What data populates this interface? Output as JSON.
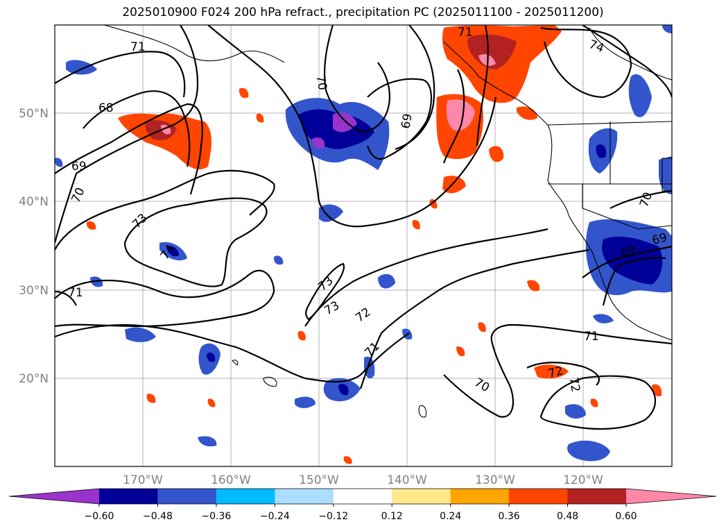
{
  "title": "2025010900 F024 200 hPa refract., precipitation PC (2025011100 - 2025011200)",
  "map": {
    "lon_range": [
      -180,
      -110
    ],
    "lat_range": [
      10,
      60
    ],
    "lon_ticks": [
      "170°W",
      "160°W",
      "150°W",
      "140°W",
      "130°W",
      "120°W"
    ],
    "lat_ticks": [
      "50°N",
      "40°N",
      "30°N",
      "20°N"
    ],
    "grid": true
  },
  "contours": {
    "labels": [
      "71",
      "68",
      "69",
      "70",
      "73",
      "74",
      "71",
      "70",
      "69",
      "71",
      "73",
      "73",
      "72",
      "71",
      "70",
      "72",
      "72",
      "71",
      "69",
      "70",
      "74",
      "71",
      "69"
    ]
  },
  "colorbar": {
    "tick_labels": [
      "-0.60",
      "-0.48",
      "-0.36",
      "-0.24",
      "-0.12",
      "0.12",
      "0.24",
      "0.36",
      "0.48",
      "0.60"
    ],
    "colors": [
      "#9933cc",
      "#000099",
      "#3355cc",
      "#00bbff",
      "#aaddff",
      "#ffffff",
      "#ffe88a",
      "#ffa500",
      "#ff4500",
      "#b22222",
      "#ff88aa"
    ]
  }
}
